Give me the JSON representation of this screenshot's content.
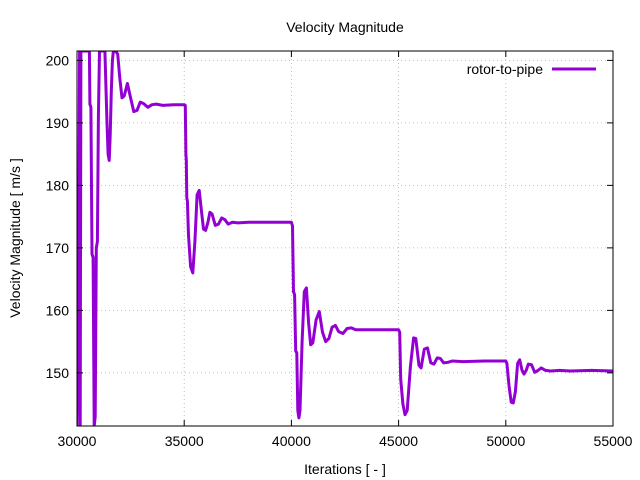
{
  "chart_data": {
    "type": "line",
    "title": "Velocity Magnitude",
    "xlabel": "Iterations [ - ]",
    "ylabel": "Velocity Magnitude [ m/s ]",
    "xlim": [
      30000,
      55000
    ],
    "ylim": [
      141.5,
      201.5
    ],
    "xticks": [
      30000,
      35000,
      40000,
      45000,
      50000,
      55000
    ],
    "yticks": [
      150,
      160,
      170,
      180,
      190,
      200
    ],
    "grid": true,
    "legend_position": "top-right",
    "colors": {
      "series": "#9400d3",
      "axis": "#000000",
      "grid": "#b0b0b0"
    },
    "series": [
      {
        "name": "rotor-to-pipe",
        "points": [
          [
            30000,
            141.5
          ],
          [
            30060,
            158
          ],
          [
            30120,
            201.5
          ],
          [
            30150,
            141.5
          ],
          [
            30180,
            201.5
          ],
          [
            30250,
            201.5
          ],
          [
            30300,
            201.5
          ],
          [
            30580,
            201.5
          ],
          [
            30600,
            193
          ],
          [
            30650,
            192.5
          ],
          [
            30700,
            169
          ],
          [
            30750,
            168.5
          ],
          [
            30800,
            141.5
          ],
          [
            30850,
            143
          ],
          [
            30900,
            170
          ],
          [
            30950,
            171
          ],
          [
            31000,
            191
          ],
          [
            31050,
            201.5
          ],
          [
            31300,
            201.5
          ],
          [
            31350,
            196
          ],
          [
            31400,
            190
          ],
          [
            31450,
            185
          ],
          [
            31500,
            184
          ],
          [
            31550,
            188
          ],
          [
            31600,
            195
          ],
          [
            31650,
            200
          ],
          [
            31700,
            201.5
          ],
          [
            31800,
            201.5
          ],
          [
            31900,
            201
          ],
          [
            32000,
            197
          ],
          [
            32100,
            194
          ],
          [
            32200,
            194.3
          ],
          [
            32350,
            196.3
          ],
          [
            32500,
            194
          ],
          [
            32650,
            191.8
          ],
          [
            32800,
            192
          ],
          [
            32950,
            193.3
          ],
          [
            33100,
            193.1
          ],
          [
            33300,
            192.5
          ],
          [
            33500,
            192.9
          ],
          [
            33700,
            193
          ],
          [
            34000,
            192.8
          ],
          [
            34500,
            192.9
          ],
          [
            35000,
            192.9
          ],
          [
            35050,
            192.8
          ],
          [
            35080,
            185
          ],
          [
            35100,
            184
          ],
          [
            35120,
            178
          ],
          [
            35150,
            177.5
          ],
          [
            35200,
            172
          ],
          [
            35300,
            167
          ],
          [
            35400,
            166
          ],
          [
            35500,
            171
          ],
          [
            35600,
            178.5
          ],
          [
            35700,
            179.2
          ],
          [
            35800,
            176
          ],
          [
            35900,
            173
          ],
          [
            36000,
            172.8
          ],
          [
            36100,
            174
          ],
          [
            36200,
            175.7
          ],
          [
            36300,
            175.4
          ],
          [
            36450,
            173.6
          ],
          [
            36600,
            173.8
          ],
          [
            36750,
            174.8
          ],
          [
            36900,
            174.5
          ],
          [
            37050,
            173.8
          ],
          [
            37250,
            174.1
          ],
          [
            37500,
            174
          ],
          [
            38000,
            174.1
          ],
          [
            38500,
            174.1
          ],
          [
            39000,
            174.1
          ],
          [
            40000,
            174.1
          ],
          [
            40050,
            173.5
          ],
          [
            40100,
            163
          ],
          [
            40150,
            162.5
          ],
          [
            40200,
            153.5
          ],
          [
            40250,
            153.2
          ],
          [
            40300,
            144
          ],
          [
            40350,
            142.8
          ],
          [
            40400,
            144
          ],
          [
            40500,
            155
          ],
          [
            40600,
            163
          ],
          [
            40700,
            163.6
          ],
          [
            40800,
            158
          ],
          [
            40900,
            154.5
          ],
          [
            41000,
            154.8
          ],
          [
            41150,
            158.5
          ],
          [
            41300,
            159.8
          ],
          [
            41450,
            156.5
          ],
          [
            41600,
            155
          ],
          [
            41750,
            155.5
          ],
          [
            41900,
            157.3
          ],
          [
            42050,
            157.6
          ],
          [
            42200,
            156.6
          ],
          [
            42400,
            156.3
          ],
          [
            42600,
            157.1
          ],
          [
            42800,
            157.2
          ],
          [
            43000,
            156.9
          ],
          [
            43500,
            156.9
          ],
          [
            44000,
            156.9
          ],
          [
            45000,
            156.9
          ],
          [
            45050,
            156.5
          ],
          [
            45100,
            149
          ],
          [
            45200,
            145
          ],
          [
            45300,
            143.3
          ],
          [
            45400,
            144
          ],
          [
            45550,
            151
          ],
          [
            45700,
            155.6
          ],
          [
            45800,
            155.5
          ],
          [
            45950,
            151.2
          ],
          [
            46050,
            150.8
          ],
          [
            46200,
            153.8
          ],
          [
            46350,
            154
          ],
          [
            46500,
            151.6
          ],
          [
            46650,
            151.4
          ],
          [
            46800,
            152.4
          ],
          [
            46950,
            152.3
          ],
          [
            47100,
            151.6
          ],
          [
            47300,
            151.7
          ],
          [
            47500,
            151.9
          ],
          [
            48000,
            151.8
          ],
          [
            49000,
            151.9
          ],
          [
            50000,
            151.9
          ],
          [
            50050,
            151.5
          ],
          [
            50150,
            148
          ],
          [
            50250,
            145.3
          ],
          [
            50350,
            145.2
          ],
          [
            50450,
            147
          ],
          [
            50550,
            151.5
          ],
          [
            50650,
            152.1
          ],
          [
            50750,
            150.5
          ],
          [
            50850,
            149.8
          ],
          [
            50950,
            150.4
          ],
          [
            51050,
            151.4
          ],
          [
            51200,
            151.3
          ],
          [
            51350,
            150.1
          ],
          [
            51500,
            150.4
          ],
          [
            51650,
            150.8
          ],
          [
            51850,
            150.4
          ],
          [
            52100,
            150.3
          ],
          [
            52500,
            150.4
          ],
          [
            53000,
            150.3
          ],
          [
            54000,
            150.4
          ],
          [
            55000,
            150.3
          ]
        ]
      }
    ]
  }
}
